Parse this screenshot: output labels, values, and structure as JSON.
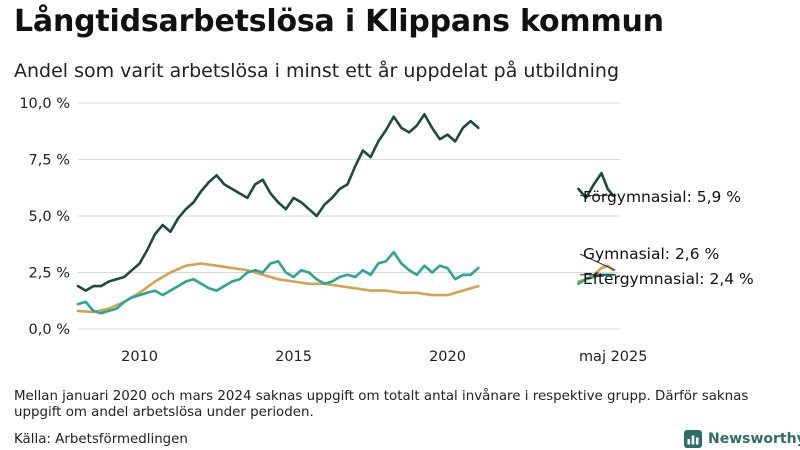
{
  "title": "Långtidsarbetslösa i Klippans kommun",
  "subtitle": "Andel som varit arbetslösa i minst ett år uppdelat på utbildning",
  "footnote": "Mellan januari 2020 och mars 2024 saknas uppgift om totalt antal invånare i respektive grupp. Därför saknas uppgift om andel arbetslösa under perioden.",
  "source": "Källa: Arbetsförmedlingen",
  "brand": {
    "name": "Newsworthy",
    "logo_icon": "bar-chart-icon",
    "color": "#2e6e66"
  },
  "chart_data": {
    "type": "line",
    "title": "Långtidsarbetslösa i Klippans kommun",
    "subtitle": "Andel som varit arbetslösa i minst ett år uppdelat på utbildning",
    "x_range": [
      2008.0,
      2025.6
    ],
    "ylim": [
      0,
      10
    ],
    "yticks": [
      0,
      2.5,
      5,
      7.5,
      10
    ],
    "ytick_labels": [
      "0,0 %",
      "2,5 %",
      "5,0 %",
      "7,5 %",
      "10,0 %"
    ],
    "xticks": [
      2010,
      2015,
      2020,
      2025.38
    ],
    "xtick_labels": [
      "2010",
      "2015",
      "2020",
      "maj 2025"
    ],
    "grid": "horizontal",
    "series": [
      {
        "name": "Förgymnasial",
        "end_label": "Förgymnasial: 5,9 %",
        "color": "#1e4a3f",
        "segments": [
          [
            [
              2008.0,
              1.9
            ],
            [
              2008.25,
              1.7
            ],
            [
              2008.5,
              1.9
            ],
            [
              2008.75,
              1.9
            ],
            [
              2009.0,
              2.1
            ],
            [
              2009.25,
              2.2
            ],
            [
              2009.5,
              2.3
            ],
            [
              2009.75,
              2.6
            ],
            [
              2010.0,
              2.9
            ],
            [
              2010.25,
              3.5
            ],
            [
              2010.5,
              4.2
            ],
            [
              2010.75,
              4.6
            ],
            [
              2011.0,
              4.3
            ],
            [
              2011.25,
              4.9
            ],
            [
              2011.5,
              5.3
            ],
            [
              2011.75,
              5.6
            ],
            [
              2012.0,
              6.1
            ],
            [
              2012.25,
              6.5
            ],
            [
              2012.5,
              6.8
            ],
            [
              2012.75,
              6.4
            ],
            [
              2013.0,
              6.2
            ],
            [
              2013.25,
              6.0
            ],
            [
              2013.5,
              5.8
            ],
            [
              2013.75,
              6.4
            ],
            [
              2014.0,
              6.6
            ],
            [
              2014.25,
              6.0
            ],
            [
              2014.5,
              5.6
            ],
            [
              2014.75,
              5.3
            ],
            [
              2015.0,
              5.8
            ],
            [
              2015.25,
              5.6
            ],
            [
              2015.5,
              5.3
            ],
            [
              2015.75,
              5.0
            ],
            [
              2016.0,
              5.5
            ],
            [
              2016.25,
              5.8
            ],
            [
              2016.5,
              6.2
            ],
            [
              2016.75,
              6.4
            ],
            [
              2017.0,
              7.2
            ],
            [
              2017.25,
              7.9
            ],
            [
              2017.5,
              7.6
            ],
            [
              2017.75,
              8.3
            ],
            [
              2018.0,
              8.8
            ],
            [
              2018.25,
              9.4
            ],
            [
              2018.5,
              8.9
            ],
            [
              2018.75,
              8.7
            ],
            [
              2019.0,
              9.0
            ],
            [
              2019.25,
              9.5
            ],
            [
              2019.5,
              8.9
            ],
            [
              2019.75,
              8.4
            ],
            [
              2020.0,
              8.6
            ],
            [
              2020.25,
              8.3
            ],
            [
              2020.5,
              8.9
            ],
            [
              2020.75,
              9.2
            ],
            [
              2021.0,
              8.9
            ]
          ],
          [
            [
              2024.25,
              6.2
            ],
            [
              2024.5,
              5.8
            ],
            [
              2024.75,
              6.4
            ],
            [
              2025.0,
              6.9
            ],
            [
              2025.2,
              6.2
            ],
            [
              2025.38,
              5.9
            ]
          ]
        ]
      },
      {
        "name": "Gymnasial",
        "end_label": "Gymnasial: 2,6 %",
        "color": "#d5a24e",
        "segments": [
          [
            [
              2008.0,
              0.8
            ],
            [
              2008.5,
              0.75
            ],
            [
              2009.0,
              0.9
            ],
            [
              2009.5,
              1.2
            ],
            [
              2010.0,
              1.6
            ],
            [
              2010.5,
              2.1
            ],
            [
              2011.0,
              2.5
            ],
            [
              2011.5,
              2.8
            ],
            [
              2012.0,
              2.9
            ],
            [
              2012.5,
              2.8
            ],
            [
              2013.0,
              2.7
            ],
            [
              2013.5,
              2.6
            ],
            [
              2014.0,
              2.4
            ],
            [
              2014.5,
              2.2
            ],
            [
              2015.0,
              2.1
            ],
            [
              2015.5,
              2.0
            ],
            [
              2016.0,
              2.0
            ],
            [
              2016.5,
              1.9
            ],
            [
              2017.0,
              1.8
            ],
            [
              2017.5,
              1.7
            ],
            [
              2018.0,
              1.7
            ],
            [
              2018.5,
              1.6
            ],
            [
              2019.0,
              1.6
            ],
            [
              2019.5,
              1.5
            ],
            [
              2020.0,
              1.5
            ],
            [
              2020.5,
              1.7
            ],
            [
              2021.0,
              1.9
            ]
          ],
          [
            [
              2024.25,
              2.1
            ],
            [
              2024.5,
              2.2
            ],
            [
              2024.75,
              2.4
            ],
            [
              2025.0,
              2.7
            ],
            [
              2025.2,
              2.8
            ],
            [
              2025.38,
              2.6
            ]
          ]
        ]
      },
      {
        "name": "Eftergymnasial",
        "end_label": "Eftergymnasial: 2,4 %",
        "color": "#2aa78e",
        "segments": [
          [
            [
              2008.0,
              1.1
            ],
            [
              2008.25,
              1.2
            ],
            [
              2008.5,
              0.8
            ],
            [
              2008.75,
              0.7
            ],
            [
              2009.0,
              0.8
            ],
            [
              2009.25,
              0.9
            ],
            [
              2009.5,
              1.2
            ],
            [
              2009.75,
              1.4
            ],
            [
              2010.0,
              1.5
            ],
            [
              2010.25,
              1.6
            ],
            [
              2010.5,
              1.7
            ],
            [
              2010.75,
              1.5
            ],
            [
              2011.0,
              1.7
            ],
            [
              2011.25,
              1.9
            ],
            [
              2011.5,
              2.1
            ],
            [
              2011.75,
              2.2
            ],
            [
              2012.0,
              2.0
            ],
            [
              2012.25,
              1.8
            ],
            [
              2012.5,
              1.7
            ],
            [
              2012.75,
              1.9
            ],
            [
              2013.0,
              2.1
            ],
            [
              2013.25,
              2.2
            ],
            [
              2013.5,
              2.5
            ],
            [
              2013.75,
              2.6
            ],
            [
              2014.0,
              2.5
            ],
            [
              2014.25,
              2.9
            ],
            [
              2014.5,
              3.0
            ],
            [
              2014.75,
              2.5
            ],
            [
              2015.0,
              2.3
            ],
            [
              2015.25,
              2.6
            ],
            [
              2015.5,
              2.5
            ],
            [
              2015.75,
              2.2
            ],
            [
              2016.0,
              2.0
            ],
            [
              2016.25,
              2.1
            ],
            [
              2016.5,
              2.3
            ],
            [
              2016.75,
              2.4
            ],
            [
              2017.0,
              2.3
            ],
            [
              2017.25,
              2.6
            ],
            [
              2017.5,
              2.4
            ],
            [
              2017.75,
              2.9
            ],
            [
              2018.0,
              3.0
            ],
            [
              2018.25,
              3.4
            ],
            [
              2018.5,
              2.9
            ],
            [
              2018.75,
              2.6
            ],
            [
              2019.0,
              2.4
            ],
            [
              2019.25,
              2.8
            ],
            [
              2019.5,
              2.5
            ],
            [
              2019.75,
              2.8
            ],
            [
              2020.0,
              2.7
            ],
            [
              2020.25,
              2.2
            ],
            [
              2020.5,
              2.4
            ],
            [
              2020.75,
              2.4
            ],
            [
              2021.0,
              2.7
            ]
          ],
          [
            [
              2024.25,
              2.0
            ],
            [
              2024.5,
              2.2
            ],
            [
              2024.75,
              2.3
            ],
            [
              2025.0,
              2.4
            ],
            [
              2025.2,
              2.4
            ],
            [
              2025.38,
              2.4
            ]
          ]
        ]
      }
    ]
  }
}
